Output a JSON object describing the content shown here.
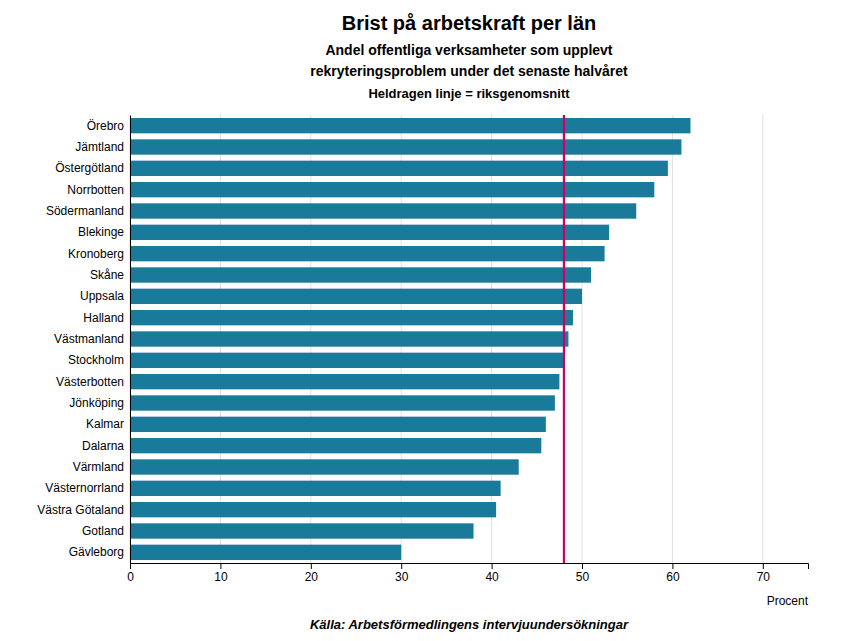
{
  "chart_data": {
    "type": "bar",
    "orientation": "horizontal",
    "title": "Brist på arbetskraft per län",
    "subtitle": [
      "Andel offentliga verksamheter som upplevt",
      "rekryteringsproblem under det senaste halvåret",
      "Heldragen linje = riksgenomsnitt"
    ],
    "source": "Källa: Arbetsförmedlingens intervjuundersökningar",
    "xlabel": "Procent",
    "categories": [
      "Örebro",
      "Jämtland",
      "Östergötland",
      "Norrbotten",
      "Södermanland",
      "Blekinge",
      "Kronoberg",
      "Skåne",
      "Uppsala",
      "Halland",
      "Västmanland",
      "Stockholm",
      "Västerbotten",
      "Jönköping",
      "Kalmar",
      "Dalarna",
      "Värmland",
      "Västernorrland",
      "Västra Götaland",
      "Gotland",
      "Gävleborg"
    ],
    "values": [
      62,
      61,
      59.5,
      58,
      56,
      53,
      52.5,
      51,
      50,
      49,
      48.5,
      48,
      47.5,
      47,
      46,
      45.5,
      43,
      41,
      40.5,
      38,
      30
    ],
    "color": "#1a7a9a",
    "reference_line": {
      "value": 48,
      "color": "#cc0066"
    },
    "xlim": [
      0,
      75
    ],
    "xticks": [
      0,
      10,
      20,
      30,
      40,
      50,
      60,
      70
    ],
    "grid": true
  }
}
